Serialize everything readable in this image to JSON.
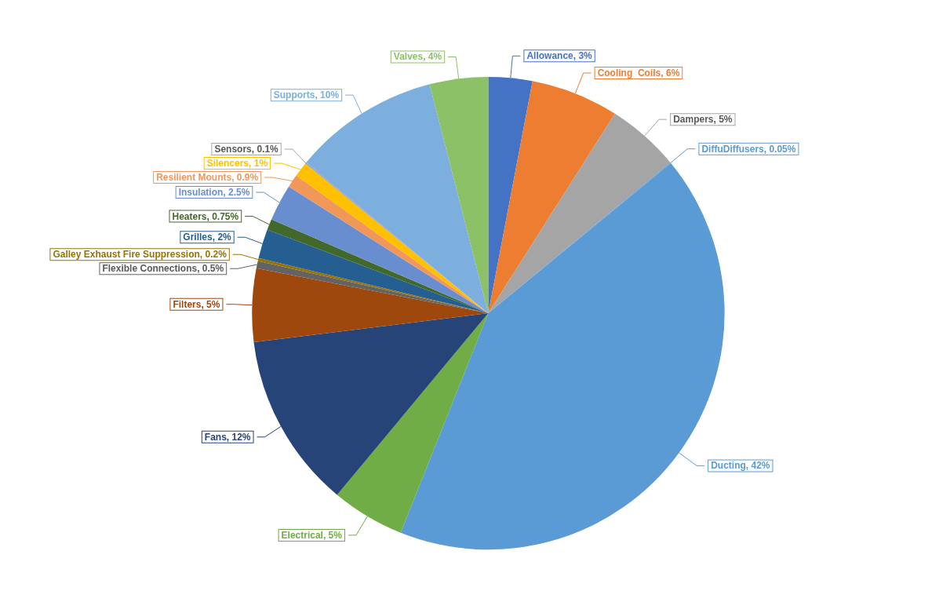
{
  "chart_data": {
    "type": "pie",
    "categories": [
      "Allowance",
      "Cooling  Coils",
      "Dampers",
      "DiffuDiffusers",
      "Ducting",
      "Electrical",
      "Fans",
      "Filters",
      "Flexible Connections",
      "Galley Exhaust Fire Suppression",
      "Grilles",
      "Heaters",
      "Insulation",
      "Resilient Mounts",
      "Silencers",
      "Sensors",
      "Supports",
      "Valves"
    ],
    "values": [
      3,
      6,
      5,
      0.05,
      42,
      5,
      12,
      5,
      0.5,
      0.2,
      2,
      0.75,
      2.5,
      0.9,
      1,
      0.1,
      10,
      4
    ],
    "value_labels": [
      "3%",
      "6%",
      "5%",
      "0.05%",
      "42%",
      "5%",
      "12%",
      "5%",
      "0.5%",
      "0.2%",
      "2%",
      "0.75%",
      "2.5%",
      "0.9%",
      "1%",
      "0.1%",
      "10%",
      "4%"
    ],
    "colors": [
      "#4472c4",
      "#ed7d31",
      "#a5a5a5",
      "#5b9bd5",
      "#5b9bd5",
      "#70ad47",
      "#264478",
      "#9e480e",
      "#636363",
      "#997300",
      "#255e91",
      "#43682b",
      "#698ed0",
      "#f1975a",
      "#ffc000",
      "#a5a5a5",
      "#7cafdd",
      "#8cc168"
    ],
    "legend": false
  }
}
